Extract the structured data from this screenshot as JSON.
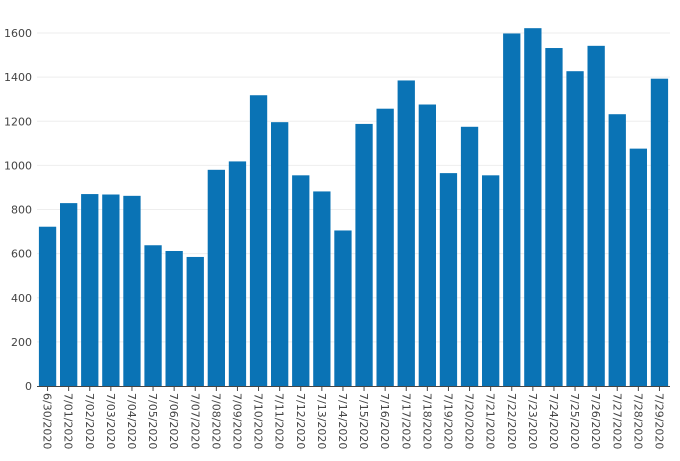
{
  "chart_data": {
    "type": "bar",
    "categories": [
      "6/30/2020",
      "7/01/2020",
      "7/02/2020",
      "7/03/2020",
      "7/04/2020",
      "7/05/2020",
      "7/06/2020",
      "7/07/2020",
      "7/08/2020",
      "7/09/2020",
      "7/10/2020",
      "7/11/2020",
      "7/12/2020",
      "7/13/2020",
      "7/14/2020",
      "7/15/2020",
      "7/16/2020",
      "7/17/2020",
      "7/18/2020",
      "7/19/2020",
      "7/20/2020",
      "7/21/2020",
      "7/22/2020",
      "7/23/2020",
      "7/24/2020",
      "7/25/2020",
      "7/26/2020",
      "7/27/2020",
      "7/28/2020",
      "7/29/2020"
    ],
    "values": [
      722,
      829,
      870,
      868,
      862,
      638,
      612,
      585,
      980,
      1018,
      1318,
      1196,
      955,
      882,
      705,
      1188,
      1257,
      1385,
      1276,
      965,
      1175,
      955,
      1598,
      1622,
      1532,
      1427,
      1542,
      1232,
      1076,
      1393
    ],
    "yticks": [
      0,
      200,
      400,
      600,
      800,
      1000,
      1200,
      1400,
      1600
    ],
    "ylim": [
      0,
      1650
    ],
    "grid": true,
    "bar_color": "#0a73b5",
    "title": "",
    "xlabel": "",
    "ylabel": ""
  }
}
